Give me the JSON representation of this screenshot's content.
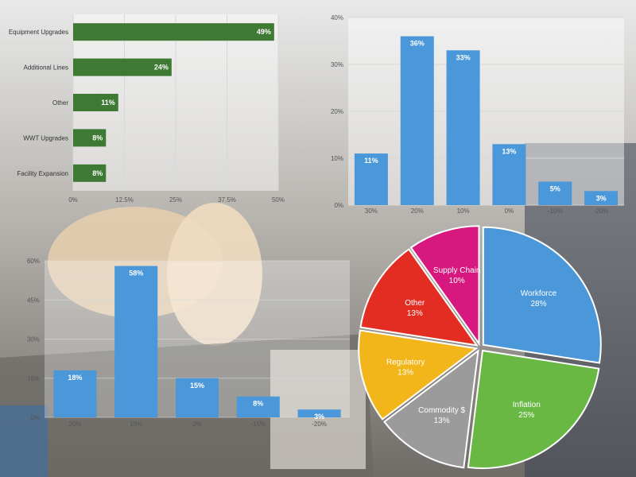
{
  "colors": {
    "hbar": "#3f7a35",
    "bar": "#4a97d9",
    "grid": "#d8d8d8"
  },
  "chart_data": [
    {
      "type": "bar",
      "orientation": "horizontal",
      "categories": [
        "Equipment Upgrades",
        "Additional Lines",
        "Other",
        "WWT Upgrades",
        "Facility Expansion"
      ],
      "values": [
        49,
        24,
        11,
        8,
        8
      ],
      "value_labels": [
        "49%",
        "24%",
        "11%",
        "8%",
        "8%"
      ],
      "xlim": [
        0,
        50
      ],
      "xticks": [
        "0%",
        "12.5%",
        "25%",
        "37.5%",
        "50%"
      ],
      "grid": true
    },
    {
      "type": "bar",
      "categories": [
        "30%",
        "20%",
        "10%",
        "0%",
        "-10%",
        "-20%"
      ],
      "values": [
        11,
        36,
        33,
        13,
        5,
        3
      ],
      "value_labels": [
        "11%",
        "36%",
        "33%",
        "13%",
        "5%",
        "3%"
      ],
      "ylim": [
        0,
        40
      ],
      "yticks": [
        "0%",
        "10%",
        "20%",
        "30%",
        "40%"
      ],
      "grid": true
    },
    {
      "type": "bar",
      "categories": [
        "20%",
        "10%",
        "0%",
        "-15%",
        "-20%"
      ],
      "values": [
        18,
        58,
        15,
        8,
        3
      ],
      "value_labels": [
        "18%",
        "58%",
        "15%",
        "8%",
        "3%"
      ],
      "ylim": [
        0,
        60
      ],
      "yticks": [
        "0%",
        "15%",
        "30%",
        "45%",
        "60%"
      ],
      "grid": true
    },
    {
      "type": "pie",
      "slices": [
        {
          "label": "Workforce",
          "value": 28,
          "value_label": "28%",
          "color": "#4a97d9"
        },
        {
          "label": "Inflation",
          "value": 25,
          "value_label": "25%",
          "color": "#68b843"
        },
        {
          "label": "Commodity $",
          "value": 13,
          "value_label": "13%",
          "color": "#9b9b9b"
        },
        {
          "label": "Regulatory",
          "value": 13,
          "value_label": "13%",
          "color": "#f2b51a"
        },
        {
          "label": "Other",
          "value": 13,
          "value_label": "13%",
          "color": "#e32d22"
        },
        {
          "label": "Supply Chain",
          "value": 10,
          "value_label": "10%",
          "color": "#d6187f"
        }
      ]
    }
  ]
}
